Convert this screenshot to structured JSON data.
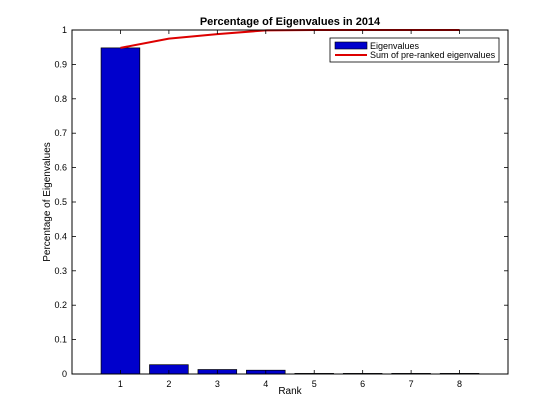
{
  "chart_data": {
    "type": "bar",
    "title": "Percentage of Eigenvalues in 2014",
    "xlabel": "Rank",
    "ylabel": "Percentage of Eigenvalues",
    "categories": [
      "1",
      "2",
      "3",
      "4",
      "5",
      "6",
      "7",
      "8"
    ],
    "xlim": [
      0,
      9
    ],
    "ylim": [
      0,
      1
    ],
    "yticks": [
      "0",
      "0.1",
      "0.2",
      "0.3",
      "0.4",
      "0.5",
      "0.6",
      "0.7",
      "0.8",
      "0.9",
      "1"
    ],
    "grid": false,
    "legend_position": "top-right",
    "series": [
      {
        "name": "Eigenvalues",
        "type": "bar",
        "color": "#0000cc",
        "values": [
          0.948,
          0.027,
          0.013,
          0.011,
          0.001,
          0.0005,
          0.0003,
          0.0002
        ]
      },
      {
        "name": "Sum of pre-ranked eigenvalues",
        "type": "line",
        "color": "#dd0000",
        "values": [
          0.948,
          0.975,
          0.988,
          0.999,
          1.0,
          1.0,
          1.0,
          1.0
        ]
      }
    ]
  }
}
